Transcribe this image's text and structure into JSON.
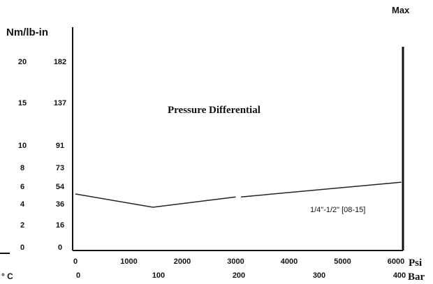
{
  "chart_data": {
    "type": "line",
    "title": "Pressure Differential",
    "y_unit_label": "Nm/lb-in",
    "max_label": "Max",
    "x_unit_psi": "Psi",
    "x_unit_bar": "Bar",
    "temp_unit_label": "° C",
    "psi_ticks": [
      0,
      1000,
      2000,
      3000,
      4000,
      5000,
      6000
    ],
    "bar_ticks": [
      0,
      100,
      200,
      300,
      400
    ],
    "y_ticks_nm": [
      0,
      2,
      4,
      6,
      8,
      10,
      15,
      20
    ],
    "y_ticks_lbin": [
      0,
      16,
      36,
      54,
      73,
      91,
      137,
      182
    ],
    "series": [
      {
        "name": "1/4\"-1/2\" [08-15]",
        "x": [
          0,
          1450,
          3000,
          3100,
          6100
        ],
        "y": [
          5.0,
          3.65,
          4.7,
          4.7,
          6.2
        ]
      }
    ],
    "xlim": [
      0,
      6100
    ],
    "ylim": [
      0,
      20
    ]
  }
}
